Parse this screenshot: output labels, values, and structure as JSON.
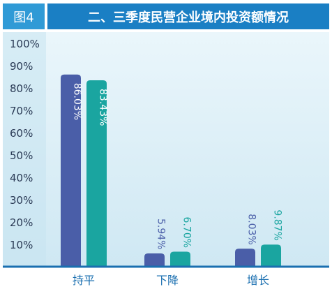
{
  "figure_label": "图4",
  "chart_data": {
    "type": "bar",
    "title": "二、三季度民营企业境内投资额情况",
    "categories": [
      "持平",
      "下降",
      "增长"
    ],
    "series": [
      {
        "values": [
          86.03,
          5.94,
          8.03
        ],
        "labels": [
          "86.03%",
          "5.94%",
          "8.03%"
        ]
      },
      {
        "values": [
          83.43,
          6.7,
          9.87
        ],
        "labels": [
          "83.43%",
          "6.70%",
          "9.87%"
        ]
      }
    ],
    "ylim": [
      0,
      100
    ],
    "yticks": [
      "10%",
      "20%",
      "30%",
      "40%",
      "50%",
      "60%",
      "70%",
      "80%",
      "90%",
      "100%"
    ],
    "grid": false
  },
  "colors": {
    "header_bar": "#1a7fc4",
    "label_box": "#2f9ad6",
    "plot_background": "#d9eef7",
    "axis": "#1a6fb0",
    "series": [
      "#4a5ea8",
      "#1aa5a0"
    ]
  }
}
